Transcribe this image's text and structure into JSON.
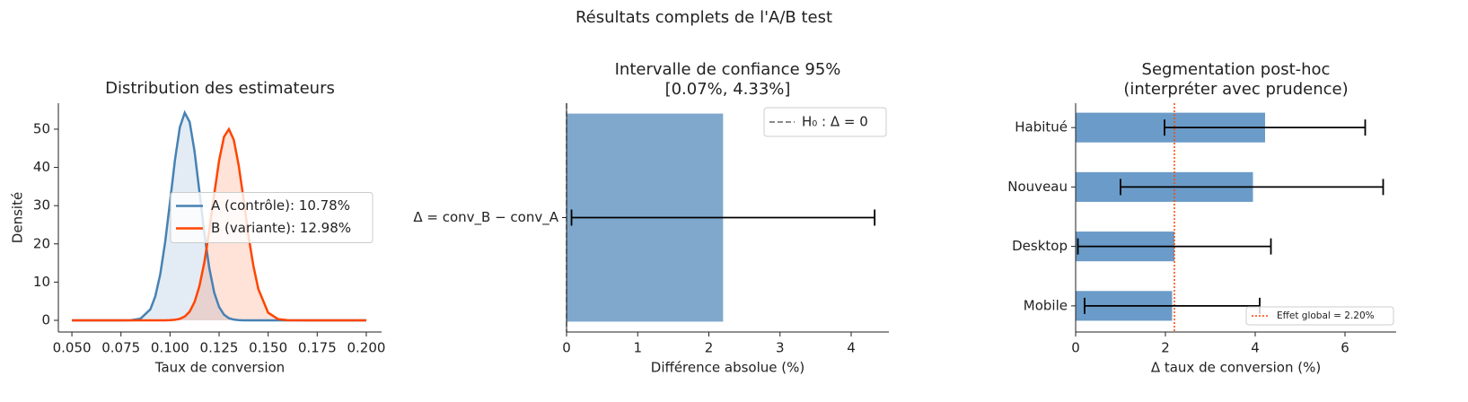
{
  "title": "Résultats complets de l'A/B test",
  "chart_data": [
    {
      "type": "line",
      "title": "Distribution des estimateurs",
      "xlabel": "Taux de conversion",
      "ylabel": "Densité",
      "x": [
        0.05,
        0.06,
        0.07,
        0.075,
        0.08,
        0.085,
        0.09,
        0.0925,
        0.095,
        0.0975,
        0.1,
        0.1025,
        0.105,
        0.1075,
        0.11,
        0.1125,
        0.115,
        0.1175,
        0.12,
        0.1225,
        0.125,
        0.1275,
        0.13,
        0.1325,
        0.135,
        0.1375,
        0.14,
        0.1425,
        0.145,
        0.15,
        0.155,
        0.16,
        0.17,
        0.18,
        0.19,
        0.2
      ],
      "series": [
        {
          "name": "A (contrôle): 10.78%",
          "color": "#4682b4",
          "values": [
            0,
            0,
            0,
            0,
            0.04,
            0.45,
            2.9,
            6.3,
            12.0,
            20.4,
            31.0,
            41.9,
            50.5,
            54.3,
            51.9,
            44.2,
            33.6,
            22.7,
            13.7,
            7.3,
            3.5,
            1.5,
            0.57,
            0.2,
            0.06,
            0,
            0,
            0,
            0,
            0,
            0,
            0,
            0,
            0,
            0,
            0
          ]
        },
        {
          "name": "B (variante): 12.98%",
          "color": "#ff4500",
          "values": [
            0,
            0,
            0,
            0,
            0,
            0,
            0,
            0,
            0,
            0.01,
            0.05,
            0.14,
            0.4,
            1.0,
            2.3,
            4.8,
            9.0,
            15.2,
            23.6,
            32.9,
            41.8,
            48.0,
            50.0,
            47.2,
            40.5,
            31.6,
            22.0,
            14.2,
            8.2,
            2.0,
            0.34,
            0.04,
            0,
            0,
            0,
            0
          ]
        }
      ],
      "fill_under": true,
      "xlim": [
        0.0431,
        0.2078
      ],
      "xticks": [
        {
          "value": 0.05,
          "label": "0.050"
        },
        {
          "value": 0.075,
          "label": "0.075"
        },
        {
          "value": 0.1,
          "label": "0.100"
        },
        {
          "value": 0.125,
          "label": "0.125"
        },
        {
          "value": 0.15,
          "label": "0.150"
        },
        {
          "value": 0.175,
          "label": "0.175"
        },
        {
          "value": 0.2,
          "label": "0.200"
        }
      ],
      "ylim": [
        -3.05,
        56.8
      ],
      "yticks": [
        0,
        10,
        20,
        30,
        40,
        50
      ],
      "legend": "center right"
    },
    {
      "type": "barh",
      "title": [
        "Intervalle de confiance 95%",
        "[0.07%, 4.33%]"
      ],
      "xlabel": "Différence absolue (%)",
      "categories": [
        "Δ = conv_B − conv_A"
      ],
      "values": [
        2.2
      ],
      "error_low": [
        0.07
      ],
      "error_high": [
        4.33
      ],
      "color": "#7fa8cc",
      "reference_line": {
        "value": 0,
        "label": "H₀ : Δ = 0",
        "color": "#666666",
        "style": "dashed"
      },
      "xlim": [
        0,
        4.53
      ],
      "xticks": [
        0,
        1,
        2,
        3,
        4
      ],
      "legend": "upper right"
    },
    {
      "type": "barh",
      "title": [
        "Segmentation post-hoc",
        "(interpréter avec prudence)"
      ],
      "xlabel": "Δ taux de conversion (%)",
      "categories": [
        "Mobile",
        "Desktop",
        "Nouveau",
        "Habitué"
      ],
      "values": [
        2.15,
        2.2,
        3.95,
        4.22
      ],
      "error_low": [
        0.2,
        0.05,
        1.0,
        1.98
      ],
      "error_high": [
        4.1,
        4.35,
        6.85,
        6.45
      ],
      "color": "#6b9bc8",
      "reference_line": {
        "value": 2.2,
        "label": "Effet global = 2.20%",
        "color": "#ff4500",
        "style": "dotted"
      },
      "xlim": [
        0,
        7.14
      ],
      "xticks": [
        0,
        2,
        4,
        6
      ],
      "legend": "lower right"
    }
  ]
}
